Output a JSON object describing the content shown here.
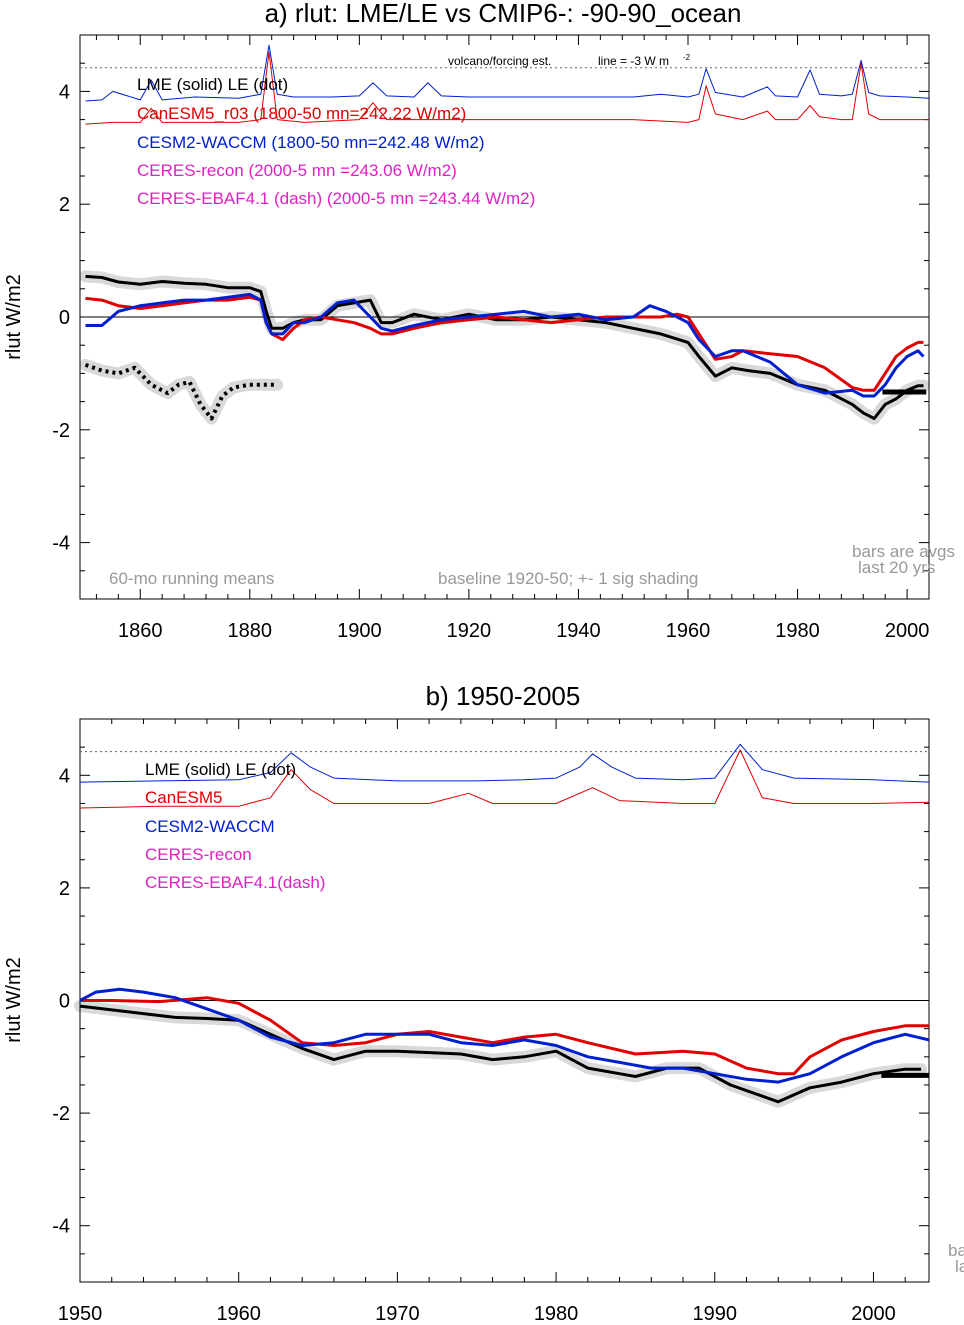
{
  "colors": {
    "lme": "#000000",
    "canesm": "#e00000",
    "cesm": "#0020d0",
    "ceres": "#e020c0",
    "note": "#999999",
    "shade": "#d9d9d9"
  },
  "chart_data": [
    {
      "type": "line",
      "title": "a) rlut: LME/LE vs CMIP6-: -90-90_ocean",
      "ylabel": "rlut W/m2",
      "xlim": [
        1849,
        2004
      ],
      "ylim": [
        -5,
        5
      ],
      "xticks": [
        1860,
        1880,
        1900,
        1920,
        1940,
        1960,
        1980,
        2000
      ],
      "yticks": [
        -4,
        -2,
        0,
        2,
        4
      ],
      "legend": [
        {
          "key": "lme",
          "text": "LME (solid)   LE (dot)"
        },
        {
          "key": "canesm",
          "text": "CanESM5_r03 (1800-50 mn=242.22 W/m2)"
        },
        {
          "key": "cesm",
          "text": "CESM2-WACCM (1800-50 mn=242.48 W/m2)"
        },
        {
          "key": "ceres",
          "text": "CERES-recon (2000-5 mn =243.06 W/m2)"
        },
        {
          "key": "ceres",
          "text": "CERES-EBAF4.1 (dash) (2000-5 mn =243.44 W/m2)"
        }
      ],
      "annotations": {
        "volcano": "volcano/forcing est.",
        "forcing_line": "line = -3 W m",
        "forcing_line_sup": "-2",
        "running": "60-mo running means",
        "baseline": "baseline 1920-50; +- 1 sig shading",
        "bars1": "bars are avgs",
        "bars2": "last 20 yrs"
      },
      "reference_level": 4.42,
      "bar": {
        "x": [
          1995.5,
          2003.5
        ],
        "y": -1.33
      },
      "series": [
        {
          "name": "LME",
          "key": "lme",
          "width": 3,
          "shade": true,
          "x": [
            1850,
            1853,
            1856,
            1860,
            1864,
            1868,
            1872,
            1876,
            1880,
            1882,
            1883,
            1884,
            1886,
            1888,
            1890,
            1893,
            1896,
            1899,
            1902,
            1904,
            1906,
            1910,
            1915,
            1920,
            1925,
            1930,
            1935,
            1940,
            1945,
            1950,
            1955,
            1960,
            1962,
            1965,
            1968,
            1971,
            1975,
            1980,
            1985,
            1990,
            1992,
            1994,
            1996,
            1998,
            2000,
            2002,
            2003
          ],
          "y": [
            0.72,
            0.7,
            0.62,
            0.58,
            0.63,
            0.6,
            0.58,
            0.52,
            0.52,
            0.45,
            0.1,
            -0.2,
            -0.2,
            -0.1,
            -0.05,
            -0.05,
            0.2,
            0.25,
            0.3,
            -0.1,
            -0.1,
            0.05,
            -0.05,
            0.05,
            -0.05,
            -0.05,
            0.0,
            -0.05,
            -0.1,
            -0.2,
            -0.3,
            -0.45,
            -0.7,
            -1.05,
            -0.9,
            -0.95,
            -1.0,
            -1.2,
            -1.3,
            -1.55,
            -1.7,
            -1.8,
            -1.55,
            -1.45,
            -1.3,
            -1.22,
            -1.22
          ]
        },
        {
          "name": "CanESM5",
          "key": "canesm",
          "width": 3,
          "x": [
            1850,
            1853,
            1856,
            1860,
            1864,
            1868,
            1872,
            1876,
            1880,
            1882,
            1883,
            1884,
            1886,
            1888,
            1890,
            1893,
            1896,
            1899,
            1902,
            1904,
            1906,
            1910,
            1915,
            1920,
            1925,
            1930,
            1935,
            1940,
            1945,
            1950,
            1955,
            1958,
            1960,
            1962,
            1965,
            1968,
            1970,
            1975,
            1980,
            1985,
            1990,
            1992,
            1994,
            1996,
            1998,
            2000,
            2002,
            2003
          ],
          "y": [
            0.33,
            0.3,
            0.2,
            0.15,
            0.2,
            0.25,
            0.3,
            0.3,
            0.35,
            0.3,
            -0.1,
            -0.3,
            -0.4,
            -0.2,
            -0.05,
            0.0,
            -0.05,
            -0.1,
            -0.2,
            -0.3,
            -0.3,
            -0.2,
            -0.1,
            -0.05,
            0.0,
            -0.05,
            -0.1,
            -0.05,
            0.0,
            0.0,
            0.0,
            0.05,
            0.0,
            -0.3,
            -0.75,
            -0.7,
            -0.6,
            -0.65,
            -0.7,
            -0.9,
            -1.25,
            -1.3,
            -1.3,
            -1.0,
            -0.7,
            -0.55,
            -0.45,
            -0.45
          ]
        },
        {
          "name": "CESM2-WACCM",
          "key": "cesm",
          "width": 3,
          "x": [
            1850,
            1853,
            1856,
            1860,
            1864,
            1868,
            1872,
            1876,
            1880,
            1882,
            1883,
            1884,
            1886,
            1888,
            1890,
            1893,
            1896,
            1899,
            1902,
            1904,
            1906,
            1910,
            1915,
            1920,
            1925,
            1930,
            1935,
            1940,
            1945,
            1950,
            1953,
            1956,
            1960,
            1962,
            1965,
            1968,
            1970,
            1975,
            1980,
            1985,
            1990,
            1992,
            1994,
            1996,
            1998,
            2000,
            2002,
            2003
          ],
          "y": [
            -0.15,
            -0.15,
            0.1,
            0.2,
            0.25,
            0.3,
            0.3,
            0.35,
            0.4,
            0.3,
            -0.1,
            -0.3,
            -0.3,
            -0.1,
            -0.1,
            0.0,
            0.25,
            0.3,
            0.0,
            -0.2,
            -0.25,
            -0.15,
            -0.05,
            0.0,
            0.05,
            0.1,
            0.0,
            0.05,
            -0.05,
            0.0,
            0.2,
            0.1,
            -0.1,
            -0.4,
            -0.7,
            -0.6,
            -0.6,
            -0.8,
            -1.2,
            -1.35,
            -1.3,
            -1.4,
            -1.4,
            -1.2,
            -0.9,
            -0.7,
            -0.6,
            -0.7
          ]
        },
        {
          "name": "LE",
          "key": "lme",
          "width": 4,
          "dotted": true,
          "shade": true,
          "x": [
            1850,
            1853,
            1856,
            1859,
            1862,
            1865,
            1867,
            1869,
            1871,
            1873,
            1875,
            1877,
            1880,
            1883,
            1885
          ],
          "y": [
            -0.85,
            -0.95,
            -1.0,
            -0.9,
            -1.2,
            -1.35,
            -1.2,
            -1.15,
            -1.55,
            -1.8,
            -1.4,
            -1.25,
            -1.2,
            -1.2,
            -1.2
          ]
        },
        {
          "name": "CESM2 forcing est.",
          "key": "cesm",
          "width": 1,
          "x": [
            1850,
            1853,
            1855,
            1860,
            1862,
            1864,
            1870,
            1878,
            1882,
            1883.5,
            1885,
            1888,
            1895,
            1900,
            1902.5,
            1905,
            1910,
            1912.5,
            1915,
            1920,
            1930,
            1940,
            1950,
            1955,
            1960,
            1962,
            1963.3,
            1965,
            1970,
            1974.5,
            1976,
            1980,
            1982.3,
            1984,
            1988,
            1990,
            1991.6,
            1993,
            1995,
            2000,
            2004
          ],
          "y": [
            3.83,
            3.85,
            4.0,
            3.85,
            4.2,
            3.85,
            3.9,
            3.88,
            3.95,
            4.82,
            3.95,
            3.9,
            3.9,
            3.92,
            4.15,
            3.92,
            3.9,
            4.15,
            3.92,
            3.9,
            3.9,
            3.9,
            3.9,
            3.95,
            3.9,
            3.95,
            4.4,
            3.98,
            3.9,
            4.08,
            3.92,
            3.9,
            4.38,
            3.95,
            3.92,
            3.95,
            4.55,
            3.98,
            3.92,
            3.9,
            3.88
          ]
        },
        {
          "name": "CanESM5 forcing est.",
          "key": "canesm",
          "width": 1,
          "x": [
            1850,
            1855,
            1860,
            1862,
            1864,
            1870,
            1878,
            1882,
            1883.5,
            1885,
            1890,
            1900,
            1902.5,
            1905,
            1910,
            1920,
            1930,
            1940,
            1950,
            1960,
            1962,
            1963.3,
            1965,
            1970,
            1974.5,
            1976,
            1980,
            1982.3,
            1984,
            1988,
            1990,
            1991.6,
            1993,
            1995,
            2000,
            2004
          ],
          "y": [
            3.42,
            3.45,
            3.45,
            3.7,
            3.45,
            3.45,
            3.45,
            3.5,
            4.7,
            3.5,
            3.45,
            3.5,
            3.8,
            3.5,
            3.5,
            3.5,
            3.5,
            3.5,
            3.5,
            3.45,
            3.5,
            4.1,
            3.6,
            3.5,
            3.65,
            3.5,
            3.5,
            3.75,
            3.55,
            3.5,
            3.5,
            4.5,
            3.6,
            3.5,
            3.5,
            3.5
          ]
        }
      ]
    },
    {
      "type": "line",
      "title": "b) 1950-2005",
      "ylabel": "rlut W/m2",
      "xlim": [
        1950,
        2003.5
      ],
      "ylim": [
        -5,
        5
      ],
      "xticks": [
        1950,
        1960,
        1970,
        1980,
        1990,
        2000
      ],
      "yticks": [
        -4,
        -2,
        0,
        2,
        4
      ],
      "legend": [
        {
          "key": "lme",
          "text": "LME (solid)      LE (dot)"
        },
        {
          "key": "canesm",
          "text": "CanESM5"
        },
        {
          "key": "cesm",
          "text": "CESM2-WACCM"
        },
        {
          "key": "ceres",
          "text": "CERES-recon"
        },
        {
          "key": "ceres",
          "text": "CERES-EBAF4.1(dash)"
        }
      ],
      "annotations": {
        "bars1": "ba",
        "bars2": "la"
      },
      "reference_level": 4.42,
      "bar": {
        "x": [
          2000.5,
          2003.5
        ],
        "y": -1.33
      },
      "series": [
        {
          "name": "LME",
          "key": "lme",
          "width": 3,
          "shade": true,
          "x": [
            1950,
            1953,
            1956,
            1958,
            1960,
            1962,
            1964,
            1966,
            1968,
            1970,
            1974,
            1976,
            1978,
            1980,
            1982,
            1984,
            1985,
            1987,
            1989,
            1991,
            1993,
            1994,
            1996,
            1998,
            2000,
            2002,
            2003
          ],
          "y": [
            -0.1,
            -0.2,
            -0.3,
            -0.32,
            -0.35,
            -0.6,
            -0.85,
            -1.05,
            -0.9,
            -0.9,
            -0.95,
            -1.05,
            -1.0,
            -0.9,
            -1.2,
            -1.3,
            -1.35,
            -1.2,
            -1.2,
            -1.5,
            -1.7,
            -1.8,
            -1.55,
            -1.45,
            -1.3,
            -1.22,
            -1.22
          ]
        },
        {
          "name": "CanESM5",
          "key": "canesm",
          "width": 3,
          "x": [
            1950,
            1952,
            1955,
            1958,
            1960,
            1962,
            1964,
            1966,
            1968,
            1970,
            1972,
            1974,
            1976,
            1978,
            1980,
            1982,
            1985,
            1988,
            1990,
            1992,
            1994,
            1995,
            1996,
            1998,
            2000,
            2002,
            2003.5
          ],
          "y": [
            0.0,
            0.0,
            -0.02,
            0.05,
            -0.05,
            -0.35,
            -0.75,
            -0.8,
            -0.75,
            -0.6,
            -0.55,
            -0.65,
            -0.75,
            -0.65,
            -0.6,
            -0.75,
            -0.95,
            -0.9,
            -0.95,
            -1.2,
            -1.3,
            -1.3,
            -1.0,
            -0.7,
            -0.55,
            -0.45,
            -0.45
          ]
        },
        {
          "name": "CESM2-WACCM",
          "key": "cesm",
          "width": 3,
          "x": [
            1950,
            1951,
            1952.5,
            1954,
            1956,
            1958,
            1960,
            1962,
            1964,
            1966,
            1968,
            1970,
            1972,
            1974,
            1976,
            1978,
            1980,
            1982,
            1984,
            1986,
            1988,
            1990,
            1992,
            1994,
            1996,
            1998,
            2000,
            2002,
            2003.5
          ],
          "y": [
            0.0,
            0.15,
            0.2,
            0.15,
            0.05,
            -0.15,
            -0.35,
            -0.65,
            -0.8,
            -0.75,
            -0.6,
            -0.6,
            -0.6,
            -0.75,
            -0.8,
            -0.7,
            -0.8,
            -1.0,
            -1.1,
            -1.2,
            -1.2,
            -1.3,
            -1.4,
            -1.45,
            -1.3,
            -1.0,
            -0.75,
            -0.6,
            -0.7
          ]
        },
        {
          "name": "CESM2 forcing est.",
          "key": "cesm",
          "width": 1,
          "x": [
            1950,
            1955,
            1960,
            1962,
            1963.3,
            1964.5,
            1966,
            1970,
            1975,
            1978,
            1980,
            1981.5,
            1982.3,
            1983.5,
            1985,
            1988,
            1990,
            1991.6,
            1993,
            1995,
            2000,
            2003.5
          ],
          "y": [
            3.88,
            3.9,
            3.92,
            4.05,
            4.4,
            4.15,
            3.95,
            3.9,
            3.9,
            3.92,
            3.95,
            4.15,
            4.38,
            4.15,
            3.95,
            3.92,
            3.95,
            4.55,
            4.1,
            3.95,
            3.92,
            3.88
          ]
        },
        {
          "name": "CanESM5 forcing est.",
          "key": "canesm",
          "width": 1,
          "x": [
            1950,
            1955,
            1960,
            1962,
            1963.3,
            1964.5,
            1966,
            1968,
            1972,
            1974.5,
            1976,
            1980,
            1982.3,
            1984,
            1988,
            1990,
            1991.6,
            1993,
            1995,
            2000,
            2003.5
          ],
          "y": [
            3.42,
            3.45,
            3.45,
            3.6,
            4.1,
            3.75,
            3.5,
            3.5,
            3.5,
            3.68,
            3.5,
            3.5,
            3.78,
            3.55,
            3.5,
            3.5,
            4.45,
            3.6,
            3.5,
            3.5,
            3.52
          ]
        }
      ]
    }
  ]
}
